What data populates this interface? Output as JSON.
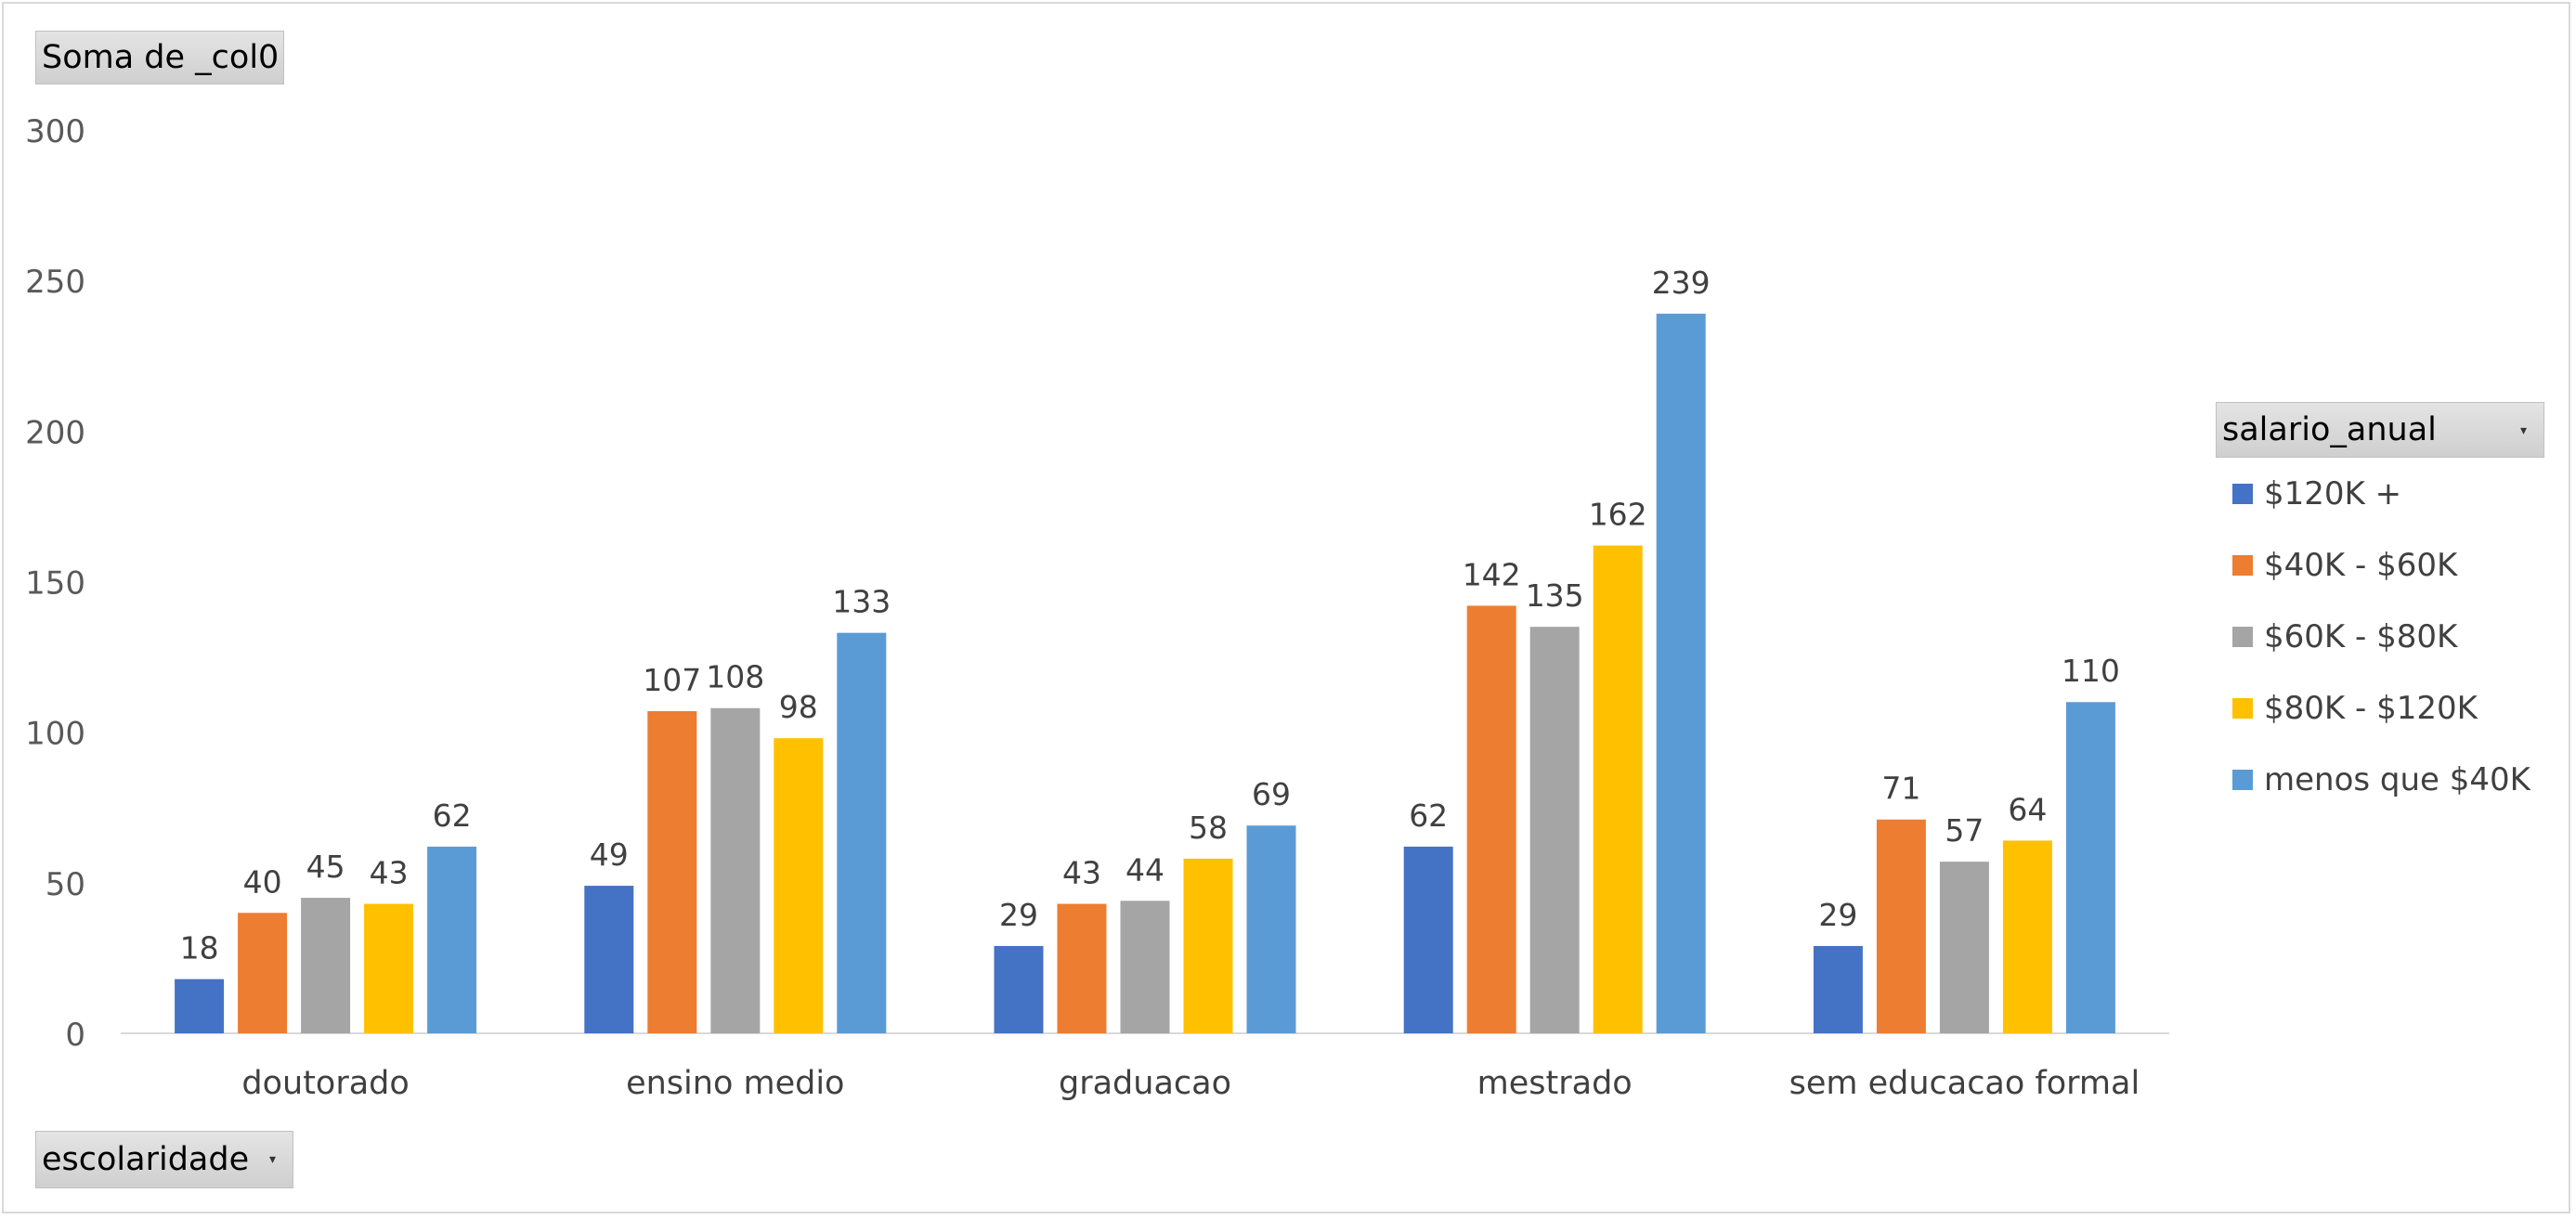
{
  "value_field_label": "Soma de _col0",
  "axis_field_label": "escolaridade",
  "legend_field_label": "salario_anual",
  "chart_data": {
    "type": "bar",
    "title": "",
    "xlabel": "",
    "ylabel": "",
    "ylim": [
      0,
      300
    ],
    "yticks": [
      0,
      50,
      100,
      150,
      200,
      250,
      300
    ],
    "grid": false,
    "legend_position": "right",
    "data_labels": true,
    "categories": [
      "doutorado",
      "ensino medio",
      "graduacao",
      "mestrado",
      "sem educacao formal"
    ],
    "series": [
      {
        "name": "$120K +",
        "color": "#4472C4",
        "values": [
          18,
          49,
          29,
          62,
          29
        ]
      },
      {
        "name": "$40K - $60K",
        "color": "#ED7D31",
        "values": [
          40,
          107,
          43,
          142,
          71
        ]
      },
      {
        "name": "$60K - $80K",
        "color": "#A5A5A5",
        "values": [
          45,
          108,
          44,
          135,
          57
        ]
      },
      {
        "name": "$80K - $120K",
        "color": "#FFC000",
        "values": [
          43,
          98,
          58,
          162,
          64
        ]
      },
      {
        "name": "menos que $40K",
        "color": "#5B9BD5",
        "values": [
          62,
          133,
          69,
          239,
          110
        ]
      }
    ]
  }
}
